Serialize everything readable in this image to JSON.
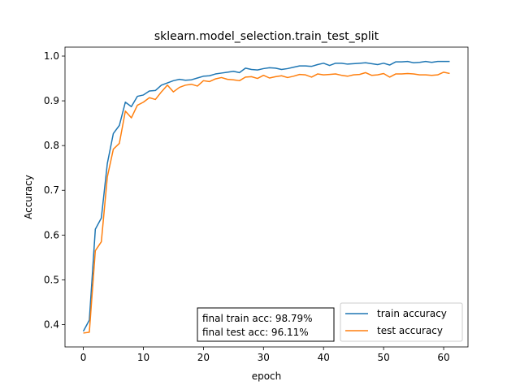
{
  "chart_data": {
    "type": "line",
    "title": "sklearn.model_selection.train_test_split",
    "xlabel": "epoch",
    "ylabel": "Accuracy",
    "xlim": [
      -3.05,
      64.05
    ],
    "ylim": [
      0.35,
      1.02
    ],
    "xticks": [
      0,
      10,
      20,
      30,
      40,
      50,
      60
    ],
    "yticks": [
      0.4,
      0.5,
      0.6,
      0.7,
      0.8,
      0.9,
      1.0
    ],
    "grid": false,
    "legend_position": "lower-right",
    "annotation": [
      "final train acc: 98.79%",
      "final test acc: 96.11%"
    ],
    "x": [
      0,
      1,
      2,
      3,
      4,
      5,
      6,
      7,
      8,
      9,
      10,
      11,
      12,
      13,
      14,
      15,
      16,
      17,
      18,
      19,
      20,
      21,
      22,
      23,
      24,
      25,
      26,
      27,
      28,
      29,
      30,
      31,
      32,
      33,
      34,
      35,
      36,
      37,
      38,
      39,
      40,
      41,
      42,
      43,
      44,
      45,
      46,
      47,
      48,
      49,
      50,
      51,
      52,
      53,
      54,
      55,
      56,
      57,
      58,
      59,
      60,
      61
    ],
    "series": [
      {
        "name": "train accuracy",
        "color": "#1f77b4",
        "values": [
          0.385,
          0.41,
          0.613,
          0.638,
          0.76,
          0.827,
          0.845,
          0.897,
          0.887,
          0.91,
          0.913,
          0.922,
          0.923,
          0.935,
          0.94,
          0.945,
          0.948,
          0.946,
          0.947,
          0.951,
          0.955,
          0.956,
          0.96,
          0.962,
          0.964,
          0.966,
          0.963,
          0.973,
          0.97,
          0.969,
          0.972,
          0.974,
          0.973,
          0.97,
          0.972,
          0.975,
          0.978,
          0.978,
          0.977,
          0.981,
          0.984,
          0.979,
          0.984,
          0.984,
          0.982,
          0.983,
          0.984,
          0.985,
          0.983,
          0.981,
          0.984,
          0.98,
          0.987,
          0.987,
          0.988,
          0.985,
          0.986,
          0.988,
          0.986,
          0.988,
          0.988,
          0.9879
        ]
      },
      {
        "name": "test accuracy",
        "color": "#ff7f0e",
        "values": [
          0.381,
          0.383,
          0.565,
          0.585,
          0.73,
          0.792,
          0.805,
          0.877,
          0.862,
          0.89,
          0.897,
          0.907,
          0.903,
          0.92,
          0.935,
          0.92,
          0.93,
          0.935,
          0.937,
          0.933,
          0.945,
          0.943,
          0.949,
          0.952,
          0.948,
          0.947,
          0.945,
          0.953,
          0.954,
          0.95,
          0.957,
          0.951,
          0.954,
          0.956,
          0.952,
          0.955,
          0.959,
          0.958,
          0.953,
          0.96,
          0.958,
          0.959,
          0.96,
          0.957,
          0.955,
          0.958,
          0.959,
          0.963,
          0.957,
          0.958,
          0.961,
          0.953,
          0.96,
          0.96,
          0.961,
          0.96,
          0.958,
          0.958,
          0.957,
          0.958,
          0.964,
          0.9611
        ]
      }
    ]
  }
}
